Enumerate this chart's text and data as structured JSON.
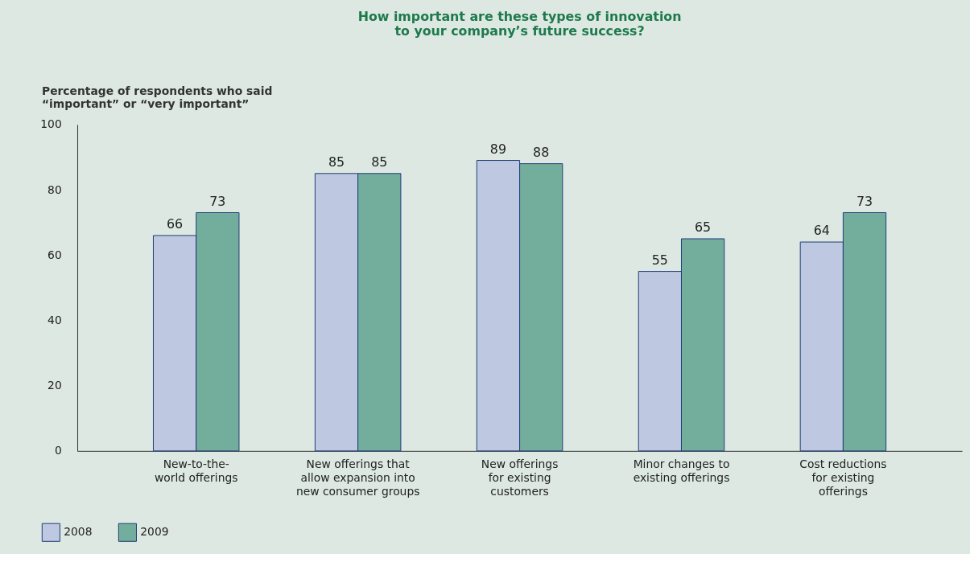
{
  "chart_data": {
    "type": "bar",
    "title": "How important are these types of innovation\nto your company’s future success?",
    "ylabel": "Percentage of respondents who said\n“important” or “very important”",
    "categories": [
      "New-to-the-\nworld offerings",
      "New offerings that\nallow expansion into\nnew consumer groups",
      "New offerings\nfor existing\ncustomers",
      "Minor changes to\nexisting offerings",
      "Cost reductions\nfor existing\nofferings"
    ],
    "series": [
      {
        "name": "2008",
        "color": "#bec8e0",
        "values": [
          66,
          85,
          89,
          55,
          64
        ]
      },
      {
        "name": "2009",
        "color": "#72ae9b",
        "values": [
          73,
          85,
          88,
          65,
          73
        ]
      }
    ],
    "ylim": [
      0,
      100
    ],
    "yticks": [
      0,
      20,
      40,
      60,
      80,
      100
    ],
    "grid": false,
    "legend": "bottom left",
    "data_labels": true
  }
}
